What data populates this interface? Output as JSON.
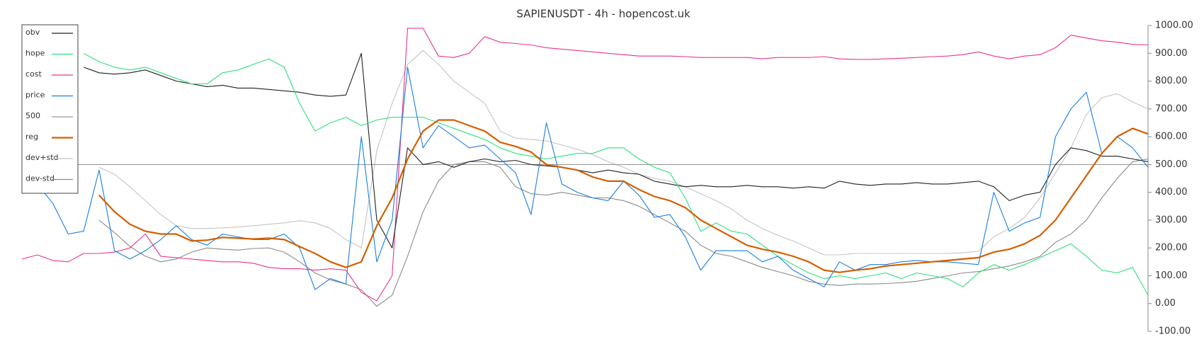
{
  "chart_data": {
    "type": "line",
    "title": "SAPIENUSDT - 4h - hopencost.uk",
    "ylim": [
      -100,
      1000
    ],
    "yticks": [
      {
        "value": -100,
        "label": "-100.00"
      },
      {
        "value": 0,
        "label": "0.00"
      },
      {
        "value": 100,
        "label": "100.00"
      },
      {
        "value": 200,
        "label": "200.00"
      },
      {
        "value": 300,
        "label": "300.00"
      },
      {
        "value": 400,
        "label": "400.00"
      },
      {
        "value": 500,
        "label": "500.00"
      },
      {
        "value": 600,
        "label": "600.00"
      },
      {
        "value": 700,
        "label": "700.00"
      },
      {
        "value": 800,
        "label": "800.00"
      },
      {
        "value": 900,
        "label": "900.00"
      },
      {
        "value": 1000,
        "label": "1000.00"
      }
    ],
    "legend": "upper-left",
    "series": [
      {
        "name": "obv",
        "color": "#222222",
        "values": [
          null,
          null,
          null,
          null,
          850,
          830,
          825,
          830,
          840,
          820,
          800,
          790,
          780,
          785,
          775,
          775,
          770,
          765,
          760,
          750,
          745,
          750,
          900,
          300,
          200,
          560,
          500,
          510,
          490,
          510,
          520,
          510,
          515,
          500,
          495,
          490,
          480,
          470,
          480,
          470,
          465,
          440,
          430,
          420,
          425,
          420,
          420,
          425,
          420,
          420,
          415,
          420,
          415,
          440,
          430,
          425,
          430,
          430,
          435,
          430,
          430,
          435,
          440,
          420,
          370,
          390,
          400,
          500,
          560,
          550,
          530,
          530,
          520,
          510
        ]
      },
      {
        "name": "hope",
        "color": "#2ee07a",
        "values": [
          null,
          null,
          null,
          null,
          900,
          870,
          850,
          840,
          850,
          830,
          810,
          790,
          790,
          830,
          840,
          860,
          880,
          850,
          720,
          620,
          650,
          670,
          640,
          660,
          670,
          670,
          670,
          650,
          630,
          610,
          590,
          560,
          540,
          530,
          520,
          530,
          540,
          540,
          560,
          560,
          520,
          490,
          470,
          380,
          260,
          290,
          260,
          250,
          210,
          170,
          140,
          110,
          90,
          100,
          90,
          100,
          110,
          90,
          110,
          100,
          90,
          60,
          110,
          140,
          120,
          140,
          165,
          190,
          215,
          170,
          120,
          110,
          130,
          30
        ]
      },
      {
        "name": "cost",
        "color": "#e8348c",
        "values": [
          160,
          175,
          155,
          150,
          180,
          180,
          185,
          200,
          250,
          170,
          165,
          160,
          155,
          150,
          150,
          145,
          130,
          125,
          125,
          120,
          125,
          120,
          40,
          10,
          100,
          990,
          990,
          890,
          885,
          900,
          960,
          940,
          935,
          930,
          920,
          915,
          910,
          905,
          900,
          895,
          890,
          890,
          890,
          888,
          885,
          885,
          885,
          885,
          880,
          885,
          885,
          885,
          888,
          880,
          878,
          878,
          880,
          882,
          885,
          888,
          890,
          895,
          905,
          890,
          880,
          890,
          895,
          920,
          965,
          955,
          945,
          940,
          932,
          930
        ]
      },
      {
        "name": "price",
        "color": "#1a7fe0",
        "values": [
          null,
          430,
          360,
          250,
          260,
          480,
          190,
          160,
          190,
          230,
          280,
          230,
          210,
          250,
          240,
          230,
          230,
          250,
          200,
          50,
          90,
          70,
          600,
          150,
          300,
          850,
          560,
          640,
          600,
          560,
          570,
          520,
          470,
          320,
          650,
          430,
          400,
          380,
          370,
          440,
          390,
          310,
          320,
          240,
          120,
          190,
          190,
          190,
          150,
          170,
          120,
          90,
          60,
          150,
          120,
          140,
          140,
          150,
          155,
          150,
          150,
          145,
          140,
          400,
          260,
          290,
          310,
          600,
          700,
          760,
          540,
          600,
          560,
          490
        ]
      },
      {
        "name": "500",
        "color": "#999999",
        "values": [
          500,
          500,
          500,
          500,
          500,
          500,
          500,
          500,
          500,
          500,
          500,
          500,
          500,
          500,
          500,
          500,
          500,
          500,
          500,
          500,
          500,
          500,
          500,
          500,
          500,
          500,
          500,
          500,
          500,
          500,
          500,
          500,
          500,
          500,
          500,
          500,
          500,
          500,
          500,
          500,
          500,
          500,
          500,
          500,
          500,
          500,
          500,
          500,
          500,
          500,
          500,
          500,
          500,
          500,
          500,
          500,
          500,
          500,
          500,
          500,
          500,
          500,
          500,
          500,
          500,
          500,
          500,
          500,
          500,
          500,
          500,
          500,
          500,
          500
        ]
      },
      {
        "name": "reg",
        "color": "#d35f00",
        "values": [
          null,
          null,
          null,
          null,
          null,
          390,
          330,
          285,
          260,
          250,
          250,
          225,
          228,
          238,
          235,
          232,
          235,
          230,
          205,
          180,
          150,
          130,
          150,
          280,
          380,
          520,
          620,
          660,
          660,
          640,
          620,
          580,
          565,
          545,
          500,
          490,
          480,
          455,
          440,
          440,
          410,
          385,
          370,
          345,
          300,
          270,
          240,
          210,
          195,
          185,
          170,
          150,
          120,
          112,
          120,
          125,
          135,
          140,
          145,
          150,
          155,
          160,
          165,
          185,
          195,
          215,
          245,
          300,
          380,
          460,
          540,
          600,
          630,
          610
        ]
      },
      {
        "name": "dev+std",
        "color": "#c4c4c4",
        "values": [
          null,
          null,
          null,
          null,
          null,
          490,
          465,
          420,
          370,
          320,
          280,
          270,
          270,
          272,
          275,
          280,
          285,
          290,
          298,
          290,
          270,
          230,
          200,
          550,
          720,
          860,
          910,
          860,
          800,
          760,
          720,
          620,
          595,
          590,
          585,
          570,
          555,
          535,
          510,
          490,
          465,
          450,
          440,
          420,
          395,
          370,
          340,
          300,
          270,
          245,
          225,
          200,
          175,
          175,
          180,
          180,
          180,
          180,
          180,
          180,
          180,
          183,
          188,
          240,
          270,
          310,
          380,
          470,
          560,
          680,
          740,
          755,
          725,
          700
        ]
      },
      {
        "name": "dev-std",
        "color": "#8a8a8a",
        "values": [
          null,
          null,
          null,
          null,
          null,
          300,
          255,
          205,
          170,
          150,
          160,
          185,
          200,
          195,
          192,
          198,
          200,
          185,
          150,
          110,
          85,
          70,
          50,
          -10,
          30,
          170,
          330,
          440,
          500,
          510,
          510,
          490,
          420,
          395,
          390,
          400,
          390,
          380,
          380,
          370,
          350,
          320,
          290,
          260,
          210,
          180,
          170,
          150,
          130,
          115,
          100,
          80,
          70,
          65,
          70,
          70,
          72,
          75,
          80,
          90,
          100,
          110,
          115,
          125,
          135,
          150,
          170,
          220,
          250,
          300,
          380,
          450,
          510,
          520
        ]
      }
    ]
  }
}
